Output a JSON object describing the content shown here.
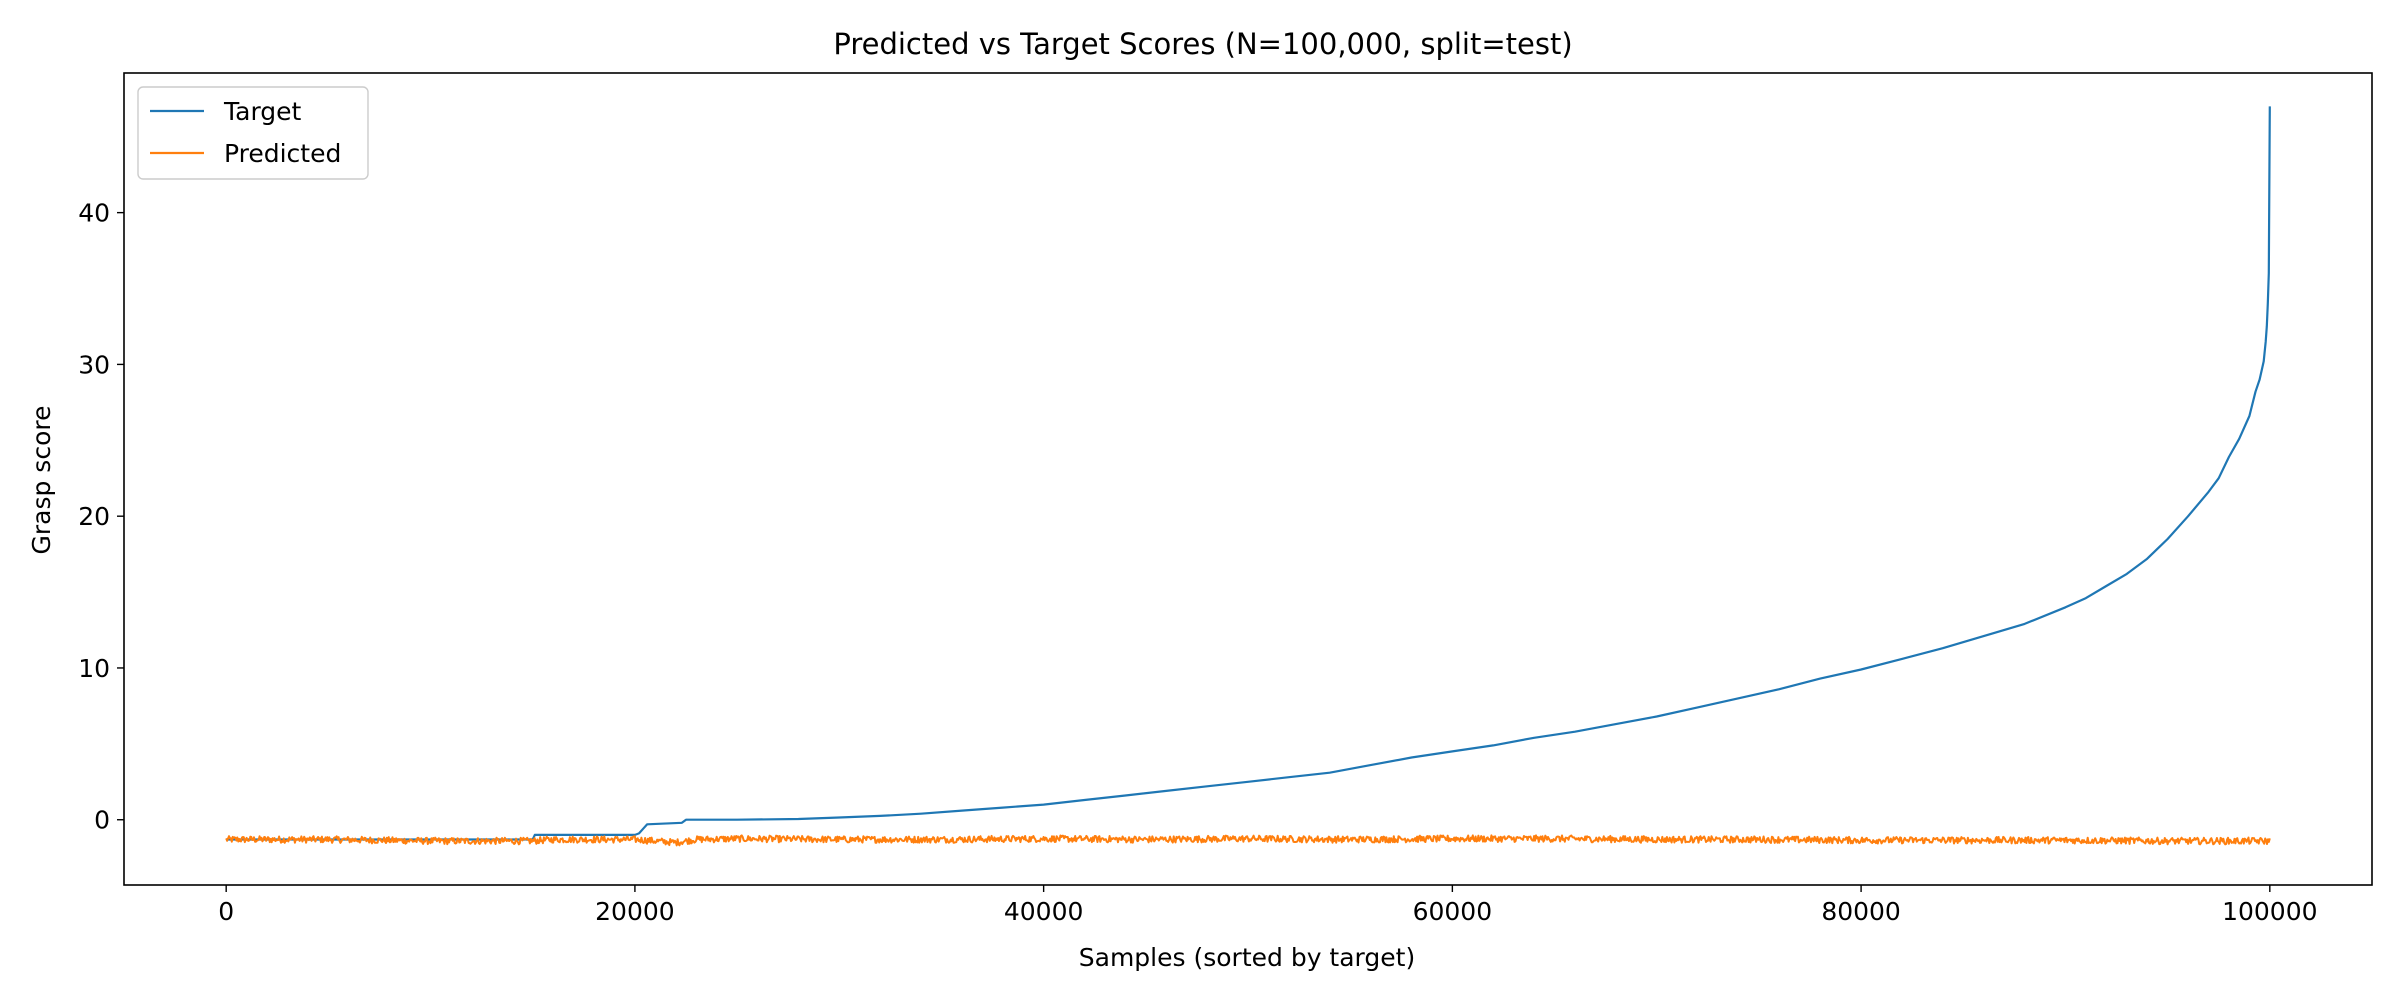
{
  "chart_data": {
    "type": "line",
    "title": "Predicted vs Target Scores (N=100,000, split=test)",
    "xlabel": "Samples (sorted by target)",
    "ylabel": "Grasp score",
    "xlim": [
      -5000,
      105000
    ],
    "ylim": [
      -4.3,
      49.2
    ],
    "x_ticks": [
      0,
      20000,
      40000,
      60000,
      80000,
      100000
    ],
    "y_ticks": [
      0,
      10,
      20,
      30,
      40
    ],
    "grid": false,
    "legend_position": "top-left",
    "series": [
      {
        "name": "Target",
        "color": "#1f77b4",
        "x": [
          0,
          5000,
          10000,
          15000,
          15100,
          20000,
          20200,
          20400,
          20600,
          22300,
          22500,
          25000,
          28000,
          30000,
          32000,
          34000,
          36000,
          38000,
          40000,
          42000,
          44000,
          46000,
          48000,
          50000,
          52000,
          54000,
          56000,
          58000,
          60000,
          62000,
          64000,
          66000,
          68000,
          70000,
          72000,
          74000,
          76000,
          78000,
          80000,
          82000,
          84000,
          86000,
          88000,
          90000,
          91000,
          92000,
          93000,
          94000,
          95000,
          96000,
          97000,
          97500,
          98000,
          98500,
          99000,
          99300,
          99500,
          99700,
          99800,
          99850,
          99900,
          99950,
          100000
        ],
        "y": [
          -1.3,
          -1.3,
          -1.3,
          -1.3,
          -1.0,
          -1.0,
          -0.9,
          -0.6,
          -0.3,
          -0.2,
          0.0,
          0.0,
          0.05,
          0.15,
          0.25,
          0.4,
          0.6,
          0.8,
          1.0,
          1.3,
          1.6,
          1.9,
          2.2,
          2.5,
          2.8,
          3.1,
          3.6,
          4.1,
          4.5,
          4.9,
          5.4,
          5.8,
          6.3,
          6.8,
          7.4,
          8.0,
          8.6,
          9.3,
          9.9,
          10.6,
          11.3,
          12.1,
          12.9,
          14.0,
          14.6,
          15.4,
          16.2,
          17.2,
          18.5,
          20.0,
          21.6,
          22.5,
          23.9,
          25.1,
          26.6,
          28.2,
          29.0,
          30.2,
          31.5,
          32.5,
          34.0,
          36.0,
          47.0
        ]
      },
      {
        "name": "Predicted",
        "color": "#ff7f0e",
        "x": [
          0,
          5000,
          10000,
          15000,
          16000,
          20000,
          22000,
          23000,
          25000,
          30000,
          35000,
          40000,
          45000,
          50000,
          55000,
          60000,
          65000,
          70000,
          75000,
          80000,
          85000,
          90000,
          95000,
          100000
        ],
        "y": [
          -1.3,
          -1.3,
          -1.4,
          -1.4,
          -1.3,
          -1.3,
          -1.5,
          -1.3,
          -1.25,
          -1.3,
          -1.3,
          -1.25,
          -1.3,
          -1.25,
          -1.3,
          -1.25,
          -1.25,
          -1.3,
          -1.3,
          -1.35,
          -1.35,
          -1.35,
          -1.4,
          -1.4
        ],
        "noise_amplitude": 0.22
      }
    ]
  }
}
